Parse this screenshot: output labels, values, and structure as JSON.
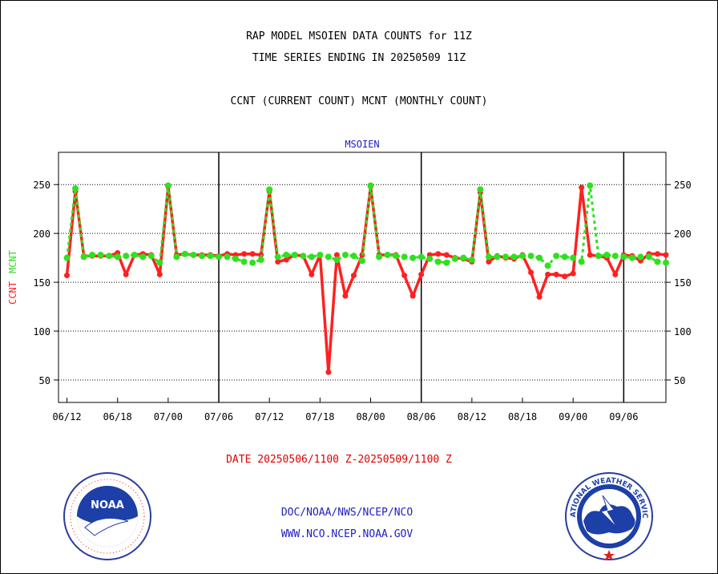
{
  "titles": {
    "line1": "RAP MODEL MSOIEN DATA COUNTS for 11Z",
    "line2": "TIME SERIES ENDING IN 20250509 11Z",
    "line3": "CCNT (CURRENT COUNT) MCNT (MONTHLY COUNT)"
  },
  "footer": {
    "date_range": "DATE 20250506/1100 Z-20250509/1100 Z",
    "link1": "DOC/NOAA/NWS/NCEP/NCO",
    "link2": "WWW.NCO.NCEP.NOAA.GOV"
  },
  "logos": {
    "left": "NOAA",
    "right_text": "NATIONAL WEATHER SERVICE"
  },
  "colors": {
    "ccnt": "#ff2020",
    "mcnt": "#30e020",
    "axis": "#000000",
    "plot_label": "#2020c0"
  },
  "chart_data": {
    "type": "line",
    "plot_label": "MSOIEN",
    "ylabel_left": "CCNT",
    "ylabel_right": "MCNT",
    "ylim": [
      27,
      283
    ],
    "yticks": [
      50,
      100,
      150,
      200,
      250
    ],
    "x_ticks": [
      "06/12",
      "06/18",
      "07/00",
      "07/06",
      "07/12",
      "07/18",
      "08/00",
      "08/06",
      "08/12",
      "08/18",
      "09/00",
      "09/06"
    ],
    "x_range": [
      -1,
      71
    ],
    "day_boundaries": [
      18,
      42,
      66
    ],
    "grid": true,
    "series": [
      {
        "name": "CCNT",
        "color": "#ff2020",
        "x": [
          0,
          1,
          2,
          3,
          4,
          5,
          6,
          7,
          8,
          9,
          10,
          11,
          12,
          13,
          14,
          15,
          16,
          17,
          18,
          19,
          20,
          21,
          22,
          23,
          24,
          25,
          26,
          27,
          28,
          29,
          30,
          31,
          32,
          33,
          34,
          35,
          36,
          37,
          38,
          39,
          40,
          41,
          42,
          43,
          44,
          45,
          46,
          47,
          48,
          49,
          50,
          51,
          52,
          53,
          54,
          55,
          56,
          57,
          58,
          59,
          60,
          61,
          62,
          63,
          64,
          65,
          66,
          67,
          68,
          69,
          70,
          71
        ],
        "values": [
          157,
          243,
          177,
          177,
          177,
          177,
          180,
          158,
          178,
          179,
          178,
          158,
          248,
          178,
          179,
          178,
          178,
          178,
          177,
          179,
          178,
          179,
          179,
          178,
          243,
          171,
          173,
          178,
          177,
          158,
          178,
          58,
          178,
          136,
          157,
          178,
          248,
          178,
          178,
          178,
          157,
          136,
          158,
          178,
          179,
          178,
          175,
          174,
          171,
          242,
          171,
          177,
          175,
          174,
          178,
          160,
          135,
          158,
          158,
          156,
          159,
          247,
          178,
          177,
          175,
          158,
          178,
          177,
          172,
          179,
          179,
          178
        ]
      },
      {
        "name": "MCNT",
        "color": "#30e020",
        "x": [
          0,
          1,
          2,
          3,
          4,
          5,
          6,
          7,
          8,
          9,
          10,
          11,
          12,
          13,
          14,
          15,
          16,
          17,
          18,
          19,
          20,
          21,
          22,
          23,
          24,
          25,
          26,
          27,
          28,
          29,
          30,
          31,
          32,
          33,
          34,
          35,
          36,
          37,
          38,
          39,
          40,
          41,
          42,
          43,
          44,
          45,
          46,
          47,
          48,
          49,
          50,
          51,
          52,
          53,
          54,
          55,
          56,
          57,
          58,
          59,
          60,
          61,
          62,
          63,
          64,
          65,
          66,
          67,
          68,
          69,
          70,
          71
        ],
        "values": [
          175,
          246,
          176,
          178,
          178,
          177,
          176,
          177,
          178,
          176,
          177,
          170,
          249,
          176,
          179,
          178,
          177,
          177,
          176,
          176,
          174,
          171,
          170,
          173,
          245,
          176,
          178,
          178,
          177,
          176,
          178,
          176,
          173,
          178,
          177,
          172,
          249,
          176,
          178,
          177,
          176,
          175,
          176,
          174,
          171,
          170,
          174,
          175,
          173,
          245,
          176,
          176,
          176,
          176,
          177,
          177,
          175,
          167,
          177,
          176,
          175,
          171,
          249,
          177,
          178,
          177,
          176,
          175,
          176,
          176,
          171,
          170
        ]
      }
    ]
  }
}
